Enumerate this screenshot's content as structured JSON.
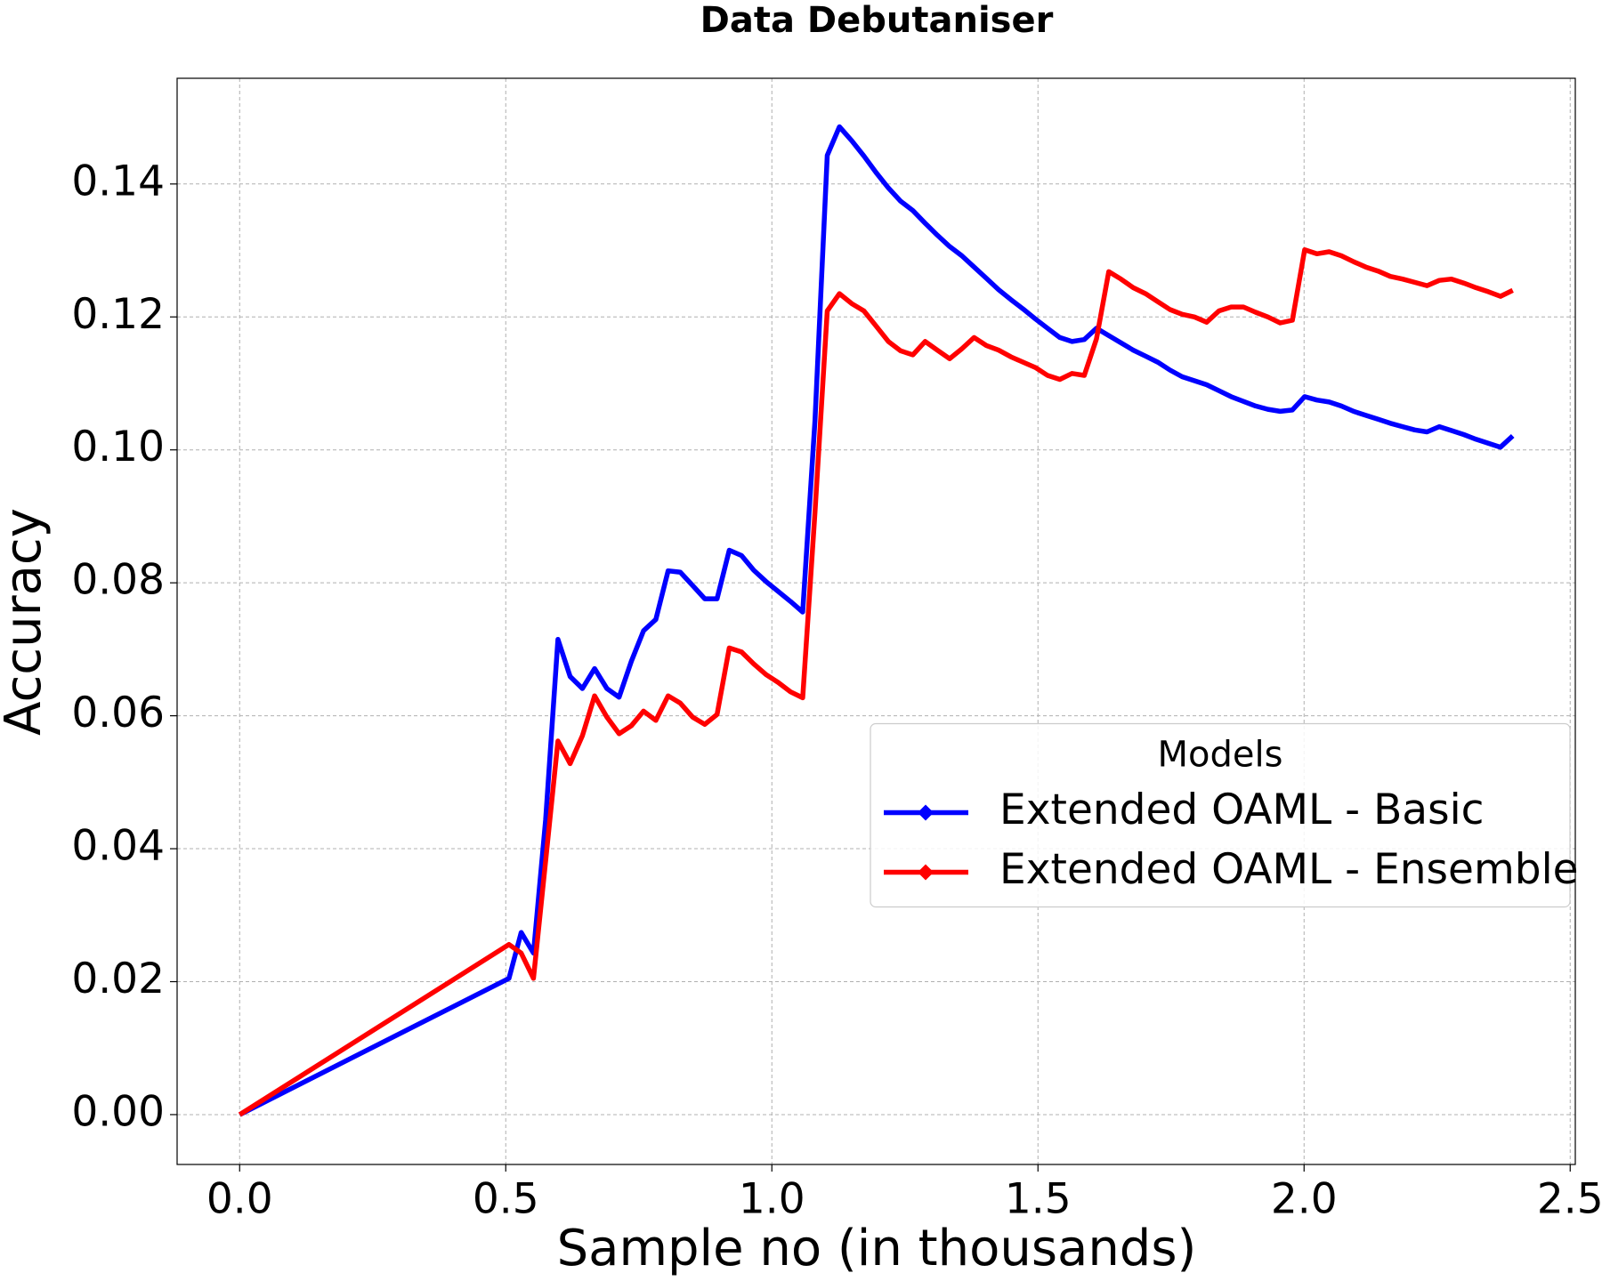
{
  "chart_data": {
    "type": "line",
    "title": "Data Debutaniser",
    "x_label": "Sample no (in thousands)",
    "y_label": "Accuracy",
    "legend_title": "Models",
    "legend_loc": "center right",
    "grid": true,
    "xlim": [
      -0.1175,
      2.5096
    ],
    "ylim": [
      -0.0075,
      0.1559
    ],
    "xticks": [
      {
        "value": 0,
        "label": "0.0"
      },
      0.5,
      {
        "value": 1,
        "label": "1.0"
      },
      1.5,
      {
        "value": 2,
        "label": "2.0"
      },
      2.5
    ],
    "yticks": [
      {
        "value": 0,
        "label": "0.00"
      },
      {
        "value": 0.02,
        "label": "0.02"
      },
      {
        "value": 0.04,
        "label": "0.04"
      },
      {
        "value": 0.06,
        "label": "0.06"
      },
      {
        "value": 0.08,
        "label": "0.08"
      },
      {
        "value": 0.1,
        "label": "0.10"
      },
      {
        "value": 0.12,
        "label": "0.12"
      },
      {
        "value": 0.14,
        "label": "0.14"
      }
    ],
    "x": [
      0,
      0.506,
      0.529,
      0.552,
      0.575,
      0.598,
      0.621,
      0.644,
      0.667,
      0.69,
      0.713,
      0.736,
      0.759,
      0.782,
      0.805,
      0.828,
      0.851,
      0.874,
      0.897,
      0.92,
      0.943,
      0.966,
      0.989,
      1.012,
      1.035,
      1.058,
      1.081,
      1.104,
      1.127,
      1.15,
      1.173,
      1.196,
      1.219,
      1.242,
      1.265,
      1.288,
      1.311,
      1.334,
      1.357,
      1.38,
      1.403,
      1.426,
      1.449,
      1.472,
      1.495,
      1.518,
      1.541,
      1.564,
      1.587,
      1.61,
      1.633,
      1.656,
      1.679,
      1.702,
      1.725,
      1.748,
      1.771,
      1.794,
      1.817,
      1.84,
      1.863,
      1.886,
      1.909,
      1.932,
      1.955,
      1.978,
      2.001,
      2.024,
      2.047,
      2.07,
      2.093,
      2.116,
      2.139,
      2.162,
      2.185,
      2.208,
      2.231,
      2.254,
      2.277,
      2.3,
      2.323,
      2.346,
      2.369,
      2.392
    ],
    "series": [
      {
        "name": "Extended OAML - Basic",
        "color": "#0000ff",
        "values": [
          0,
          0.0205,
          0.0274,
          0.0243,
          0.0444,
          0.0715,
          0.0659,
          0.0641,
          0.0671,
          0.0641,
          0.0628,
          0.0682,
          0.0728,
          0.0745,
          0.0818,
          0.0816,
          0.0796,
          0.0776,
          0.0776,
          0.0849,
          0.0841,
          0.0819,
          0.0802,
          0.0787,
          0.0772,
          0.0756,
          0.1044,
          0.1443,
          0.1486,
          0.1465,
          0.1442,
          0.1417,
          0.1394,
          0.1374,
          0.136,
          0.1341,
          0.1323,
          0.1306,
          0.1292,
          0.1275,
          0.1258,
          0.1241,
          0.1226,
          0.1212,
          0.1197,
          0.1183,
          0.1169,
          0.1163,
          0.1166,
          0.1183,
          0.1172,
          0.1161,
          0.115,
          0.1141,
          0.1132,
          0.112,
          0.111,
          0.1104,
          0.1098,
          0.1089,
          0.108,
          0.1073,
          0.1066,
          0.1061,
          0.1058,
          0.106,
          0.108,
          0.1075,
          0.1072,
          0.1066,
          0.1058,
          0.1052,
          0.1046,
          0.104,
          0.1035,
          0.103,
          0.1027,
          0.1035,
          0.1029,
          0.1023,
          0.1016,
          0.101,
          0.1004,
          0.1021
        ]
      },
      {
        "name": "Extended OAML - Ensemble",
        "color": "#ff0000",
        "values": [
          0,
          0.0256,
          0.0243,
          0.0205,
          0.0382,
          0.0562,
          0.0528,
          0.057,
          0.063,
          0.0598,
          0.0573,
          0.0585,
          0.0607,
          0.0593,
          0.063,
          0.0619,
          0.0598,
          0.0587,
          0.0602,
          0.0702,
          0.0696,
          0.0678,
          0.0662,
          0.065,
          0.0636,
          0.0627,
          0.0906,
          0.1209,
          0.1235,
          0.122,
          0.1209,
          0.1186,
          0.1163,
          0.1149,
          0.1143,
          0.1163,
          0.115,
          0.1137,
          0.1152,
          0.1169,
          0.1157,
          0.115,
          0.114,
          0.1132,
          0.1124,
          0.1112,
          0.1106,
          0.1115,
          0.1112,
          0.1167,
          0.1268,
          0.1257,
          0.1244,
          0.1235,
          0.1223,
          0.1211,
          0.1204,
          0.12,
          0.1192,
          0.1209,
          0.1215,
          0.1215,
          0.1207,
          0.12,
          0.1191,
          0.1195,
          0.1301,
          0.1295,
          0.1298,
          0.1292,
          0.1283,
          0.1275,
          0.1269,
          0.1261,
          0.1257,
          0.1252,
          0.1247,
          0.1255,
          0.1257,
          0.1251,
          0.1244,
          0.1238,
          0.1231,
          0.124
        ]
      }
    ]
  }
}
